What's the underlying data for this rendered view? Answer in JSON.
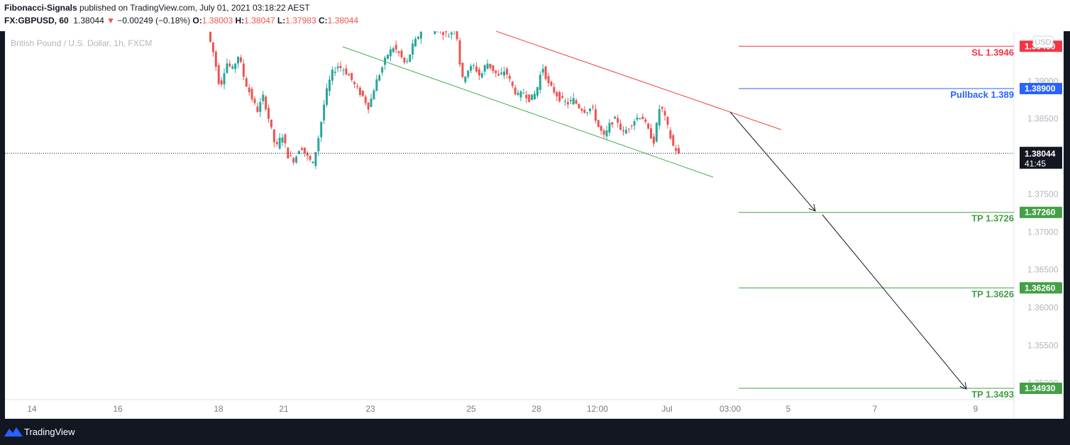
{
  "header": {
    "publisher": "Fibonacci-Signals",
    "published_text": " published on TradingView.com, July 01, 2021 03:18:22 AEST",
    "symbol": "FX:GBPUSD, 60",
    "last_price": "1.38044",
    "change": "−0.00249 (−0.18%)",
    "o_label": "O:",
    "o_value": "1.38003",
    "h_label": "H:",
    "h_value": "1.38047",
    "l_label": "L:",
    "l_value": "1.37983",
    "c_label": "C:",
    "c_value": "1.38044"
  },
  "footer": {
    "brand": "TradingView",
    "logo_icon": "tradingview-logo-icon"
  },
  "colors": {
    "up": "#26a69a",
    "down": "#ef5350",
    "sl": "#f23645",
    "pullback": "#2962ff",
    "tp": "#43a047",
    "channel_lower": "#4caf50",
    "channel_upper": "#f44336",
    "arrow": "#131722"
  },
  "chart_data": {
    "type": "candlestick",
    "title": "British Pound / U.S. Dollar, 1h, FXCM",
    "currency_badge": "USD",
    "y_ticks": [
      "1.39000",
      "1.38500",
      "1.37500",
      "1.37000",
      "1.36500",
      "1.36000",
      "1.35500",
      "1.35000"
    ],
    "x_ticks": [
      "14",
      "16",
      "18",
      "21",
      "23",
      "25",
      "28",
      "12:00",
      "Jul",
      "03:00",
      "5",
      "7",
      "9"
    ],
    "ylim": [
      1.3478,
      1.3966
    ],
    "current_price": {
      "value": 1.38044,
      "label": "1.38044",
      "countdown": "41:45"
    },
    "levels": [
      {
        "name": "SL 1.3946",
        "value": 1.3946,
        "tag": "1.39460",
        "kind": "sl"
      },
      {
        "name": "Pullback 1.389",
        "value": 1.389,
        "tag": "1.38900",
        "kind": "pullback"
      },
      {
        "name": "TP 1.3726",
        "value": 1.3726,
        "tag": "1.37260",
        "kind": "tp"
      },
      {
        "name": "TP 1.3626",
        "value": 1.3626,
        "tag": "1.36260",
        "kind": "tp"
      },
      {
        "name": "TP 1.3493",
        "value": 1.3493,
        "tag": "1.34930",
        "kind": "tp"
      }
    ],
    "price_path": [
      1.3965,
      1.3935,
      1.389,
      1.3925,
      1.3915,
      1.3935,
      1.39,
      1.388,
      1.386,
      1.388,
      1.3845,
      1.381,
      1.383,
      1.38,
      1.3795,
      1.3815,
      1.38,
      1.379,
      1.383,
      1.388,
      1.391,
      1.392,
      1.3915,
      1.3905,
      1.389,
      1.388,
      1.3865,
      1.3895,
      1.3915,
      1.3935,
      1.3945,
      1.3935,
      1.392,
      1.3945,
      1.396,
      1.3975,
      1.3965,
      1.397,
      1.3965,
      1.396,
      1.3975,
      1.39,
      1.3915,
      1.392,
      1.3905,
      1.3925,
      1.3915,
      1.3905,
      1.3915,
      1.3895,
      1.388,
      1.3885,
      1.3875,
      1.3885,
      1.392,
      1.3895,
      1.3885,
      1.3875,
      1.387,
      1.3875,
      1.3865,
      1.386,
      1.3865,
      1.384,
      1.3825,
      1.3845,
      1.385,
      1.383,
      1.384,
      1.385,
      1.3855,
      1.3835,
      1.382,
      1.387,
      1.3845,
      1.3815,
      1.3804
    ]
  }
}
